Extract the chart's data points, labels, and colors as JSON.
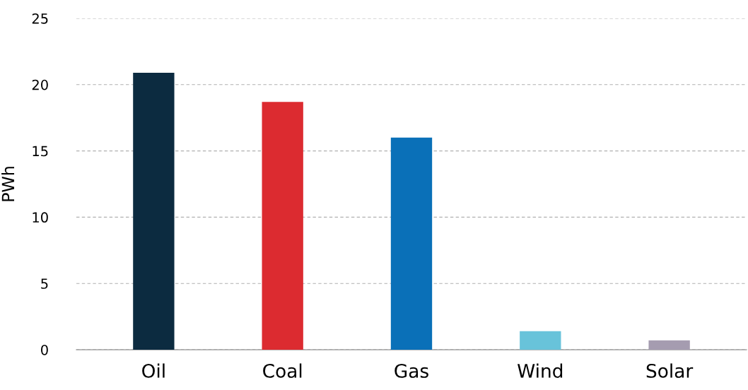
{
  "chart_data": {
    "type": "bar",
    "ylabel": "PWh",
    "categories": [
      "Oil",
      "Coal",
      "Gas",
      "Wind",
      "Solar"
    ],
    "values": [
      20.9,
      18.7,
      16.0,
      1.4,
      0.7
    ],
    "colors": [
      "#0c2b40",
      "#dc2b30",
      "#0a70b8",
      "#68c3da",
      "#a59cb0"
    ],
    "ylim": [
      0,
      25
    ],
    "yticks": [
      0,
      5,
      10,
      15,
      20,
      25
    ],
    "grid": "y"
  }
}
